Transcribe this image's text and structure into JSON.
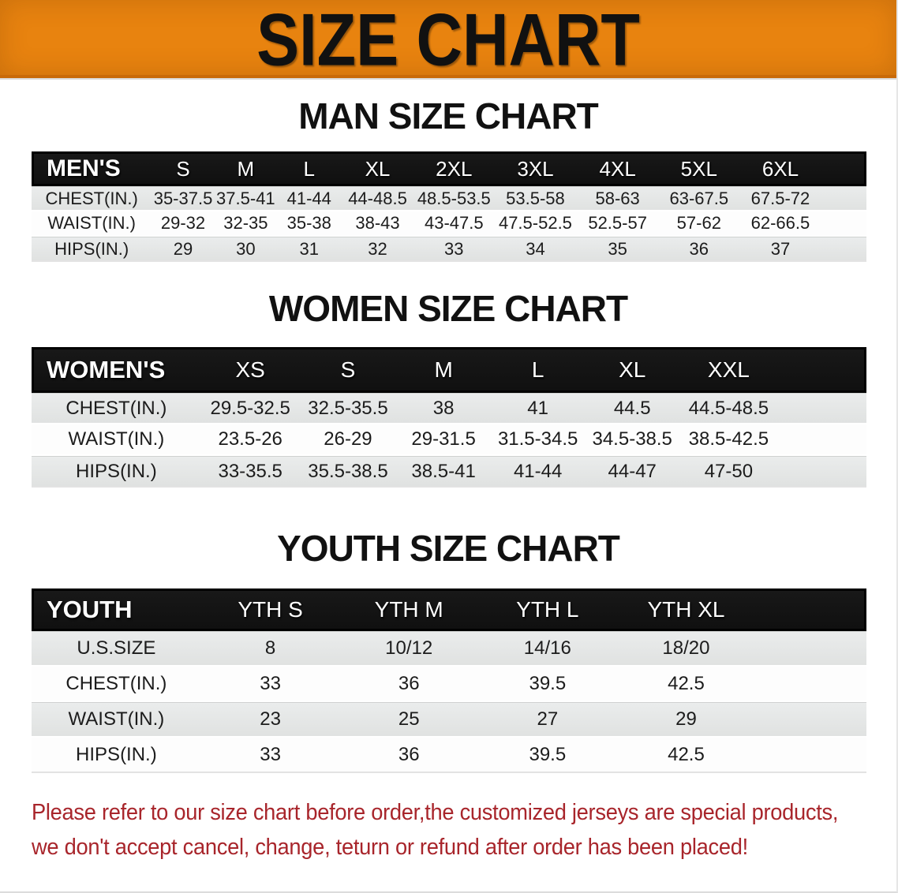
{
  "banner": {
    "title": "SIZE CHART"
  },
  "colors": {
    "banner_bg": "#E8830F",
    "banner_border": "#C96A08",
    "banner_text": "#111111",
    "heading_text": "#111111",
    "header_bar_bg": "#181818",
    "header_bar_text": "#FFFFFF",
    "row_stripe": "#E0E2E1",
    "row_stripe_light": "#EAECEC",
    "row_white": "#FDFDFD",
    "disclaimer_text": "#A8252B"
  },
  "sections": {
    "men": {
      "heading": "MAN SIZE CHART",
      "table": {
        "header": [
          "MEN'S",
          "S",
          "M",
          "L",
          "XL",
          "2XL",
          "3XL",
          "4XL",
          "5XL",
          "6XL"
        ],
        "rows": [
          [
            "CHEST(IN.)",
            "35-37.5",
            "37.5-41",
            "41-44",
            "44-48.5",
            "48.5-53.5",
            "53.5-58",
            "58-63",
            "63-67.5",
            "67.5-72"
          ],
          [
            "WAIST(IN.)",
            "29-32",
            "32-35",
            "35-38",
            "38-43",
            "43-47.5",
            "47.5-52.5",
            "52.5-57",
            "57-62",
            "62-66.5"
          ],
          [
            "HIPS(IN.)",
            "29",
            "30",
            "31",
            "32",
            "33",
            "34",
            "35",
            "36",
            "37"
          ]
        ]
      }
    },
    "women": {
      "heading": "WOMEN SIZE CHART",
      "table": {
        "header": [
          "WOMEN'S",
          "XS",
          "S",
          "M",
          "L",
          "XL",
          "XXL"
        ],
        "rows": [
          [
            "CHEST(IN.)",
            "29.5-32.5",
            "32.5-35.5",
            "38",
            "41",
            "44.5",
            "44.5-48.5"
          ],
          [
            "WAIST(IN.)",
            "23.5-26",
            "26-29",
            "29-31.5",
            "31.5-34.5",
            "34.5-38.5",
            "38.5-42.5"
          ],
          [
            "HIPS(IN.)",
            "33-35.5",
            "35.5-38.5",
            "38.5-41",
            "41-44",
            "44-47",
            "47-50"
          ]
        ]
      }
    },
    "youth": {
      "heading": "YOUTH SIZE CHART",
      "table": {
        "header": [
          "YOUTH",
          "YTH S",
          "YTH M",
          "YTH L",
          "YTH XL"
        ],
        "rows": [
          [
            "U.S.SIZE",
            "8",
            "10/12",
            "14/16",
            "18/20"
          ],
          [
            "CHEST(IN.)",
            "33",
            "36",
            "39.5",
            "42.5"
          ],
          [
            "WAIST(IN.)",
            "23",
            "25",
            "27",
            "29"
          ],
          [
            "HIPS(IN.)",
            "33",
            "36",
            "39.5",
            "42.5"
          ]
        ]
      }
    }
  },
  "disclaimer": {
    "line1": "Please refer to our size chart before order,the customized jerseys are special products,",
    "line2": "we don't accept cancel, change, teturn or refund after order has been placed!"
  }
}
